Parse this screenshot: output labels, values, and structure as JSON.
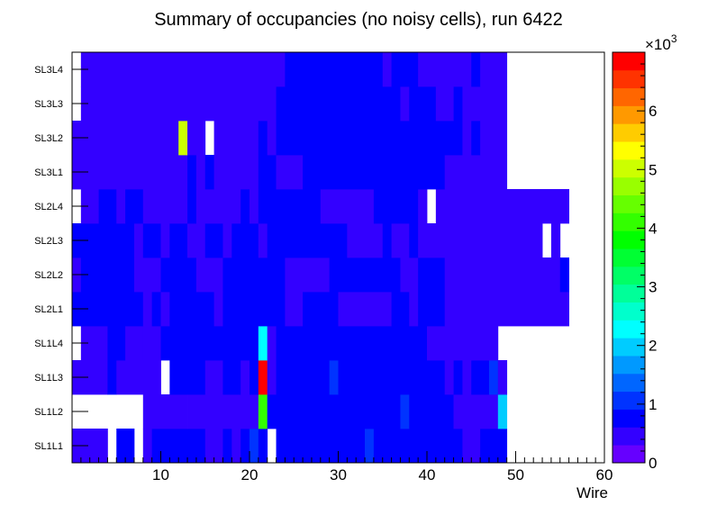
{
  "chart_data": {
    "type": "heatmap",
    "title": "Summary of occupancies (no noisy cells), run 6422",
    "xlabel": "Wire",
    "ylabel": "",
    "xlim": [
      0,
      60
    ],
    "x_ticks": [
      "10",
      "20",
      "30",
      "40",
      "50",
      "60"
    ],
    "layers": [
      "SL1L1",
      "SL1L2",
      "SL1L3",
      "SL1L4",
      "SL2L1",
      "SL2L2",
      "SL2L3",
      "SL2L4",
      "SL3L1",
      "SL3L2",
      "SL3L3",
      "SL3L4"
    ],
    "color_axis": {
      "range": [
        0,
        7
      ],
      "ticks": [
        "0",
        "1",
        "2",
        "3",
        "4",
        "5",
        "6"
      ],
      "multiplier_base": "×10",
      "multiplier_exp": "3",
      "palette": [
        "#6600ff",
        "#3300ff",
        "#0000ff",
        "#0033ff",
        "#0066ff",
        "#0099ff",
        "#00ccff",
        "#00ffff",
        "#00ffcc",
        "#00ff99",
        "#00ff66",
        "#00ff33",
        "#00ff00",
        "#33ff00",
        "#66ff00",
        "#99ff00",
        "#ccff00",
        "#ffff00",
        "#ffcc00",
        "#ff9900",
        "#ff6600",
        "#ff3300",
        "#ff0000"
      ]
    },
    "rows": [
      {
        "layer": "SL1L1",
        "segments": [
          [
            1,
            4,
            0.4
          ],
          [
            5,
            5,
            null
          ],
          [
            6,
            7,
            0.9
          ],
          [
            8,
            8,
            null
          ],
          [
            9,
            9,
            0.4
          ],
          [
            10,
            11,
            0.7
          ],
          [
            12,
            15,
            0.8
          ],
          [
            16,
            17,
            0.5
          ],
          [
            18,
            18,
            0.9
          ],
          [
            19,
            19,
            0.5
          ],
          [
            20,
            20,
            0.8
          ],
          [
            21,
            21,
            1.0
          ],
          [
            22,
            22,
            0.7
          ],
          [
            23,
            23,
            null
          ],
          [
            24,
            33,
            0.75
          ],
          [
            34,
            34,
            1.1
          ],
          [
            35,
            44,
            0.75
          ],
          [
            45,
            46,
            0.4
          ],
          [
            47,
            49,
            0.7
          ],
          [
            50,
            60,
            null
          ]
        ]
      },
      {
        "layer": "SL1L2",
        "segments": [
          [
            1,
            8,
            null
          ],
          [
            9,
            13,
            0.4
          ],
          [
            14,
            20,
            0.6
          ],
          [
            21,
            21,
            0.4
          ],
          [
            22,
            22,
            4.0
          ],
          [
            23,
            37,
            0.75
          ],
          [
            38,
            38,
            1.1
          ],
          [
            39,
            43,
            0.75
          ],
          [
            44,
            48,
            0.5
          ],
          [
            49,
            49,
            1.9
          ],
          [
            50,
            60,
            null
          ]
        ]
      },
      {
        "layer": "SL1L3",
        "segments": [
          [
            1,
            4,
            0.4
          ],
          [
            5,
            5,
            0.8
          ],
          [
            6,
            10,
            0.4
          ],
          [
            11,
            11,
            null
          ],
          [
            12,
            15,
            0.7
          ],
          [
            16,
            17,
            0.4
          ],
          [
            18,
            19,
            0.7
          ],
          [
            20,
            20,
            0.5
          ],
          [
            21,
            21,
            0.8
          ],
          [
            22,
            22,
            6.9
          ],
          [
            23,
            23,
            0.5
          ],
          [
            24,
            29,
            0.75
          ],
          [
            30,
            30,
            1.1
          ],
          [
            31,
            42,
            0.75
          ],
          [
            43,
            43,
            0.45
          ],
          [
            44,
            44,
            0.75
          ],
          [
            45,
            45,
            0.45
          ],
          [
            46,
            47,
            0.7
          ],
          [
            48,
            48,
            1.0
          ],
          [
            49,
            49,
            0.4
          ],
          [
            50,
            60,
            null
          ]
        ]
      },
      {
        "layer": "SL1L4",
        "segments": [
          [
            1,
            1,
            null
          ],
          [
            2,
            4,
            0.4
          ],
          [
            5,
            6,
            0.7
          ],
          [
            7,
            8,
            0.5
          ],
          [
            9,
            10,
            0.4
          ],
          [
            11,
            21,
            0.8
          ],
          [
            22,
            22,
            2.3
          ],
          [
            23,
            23,
            0.5
          ],
          [
            24,
            40,
            0.75
          ],
          [
            41,
            48,
            0.4
          ],
          [
            49,
            60,
            null
          ]
        ]
      },
      {
        "layer": "SL2L1",
        "segments": [
          [
            1,
            8,
            0.8
          ],
          [
            9,
            9,
            0.5
          ],
          [
            10,
            10,
            0.7
          ],
          [
            11,
            11,
            0.5
          ],
          [
            12,
            12,
            0.9
          ],
          [
            13,
            16,
            0.8
          ],
          [
            17,
            17,
            0.5
          ],
          [
            18,
            24,
            0.8
          ],
          [
            25,
            26,
            0.5
          ],
          [
            27,
            30,
            0.75
          ],
          [
            31,
            36,
            0.45
          ],
          [
            37,
            38,
            0.75
          ],
          [
            39,
            39,
            0.5
          ],
          [
            40,
            42,
            0.8
          ],
          [
            43,
            56,
            0.4
          ],
          [
            57,
            60,
            null
          ]
        ]
      },
      {
        "layer": "SL2L2",
        "segments": [
          [
            1,
            1,
            0.4
          ],
          [
            2,
            7,
            0.8
          ],
          [
            8,
            10,
            0.45
          ],
          [
            11,
            14,
            0.7
          ],
          [
            15,
            17,
            0.45
          ],
          [
            18,
            24,
            0.8
          ],
          [
            25,
            29,
            0.45
          ],
          [
            30,
            37,
            0.8
          ],
          [
            38,
            39,
            0.45
          ],
          [
            40,
            42,
            0.75
          ],
          [
            43,
            55,
            0.4
          ],
          [
            56,
            56,
            0.85
          ],
          [
            57,
            60,
            null
          ]
        ]
      },
      {
        "layer": "SL2L3",
        "segments": [
          [
            1,
            7,
            0.8
          ],
          [
            8,
            8,
            0.45
          ],
          [
            9,
            10,
            0.7
          ],
          [
            11,
            11,
            0.45
          ],
          [
            12,
            13,
            0.8
          ],
          [
            14,
            15,
            0.45
          ],
          [
            16,
            17,
            0.8
          ],
          [
            18,
            18,
            0.45
          ],
          [
            19,
            21,
            0.75
          ],
          [
            22,
            22,
            0.45
          ],
          [
            23,
            24,
            0.8
          ],
          [
            25,
            28,
            0.7
          ],
          [
            29,
            31,
            0.8
          ],
          [
            32,
            35,
            0.45
          ],
          [
            36,
            36,
            0.75
          ],
          [
            37,
            38,
            0.45
          ],
          [
            39,
            39,
            0.8
          ],
          [
            40,
            53,
            0.4
          ],
          [
            54,
            54,
            null
          ],
          [
            55,
            55,
            0.4
          ],
          [
            56,
            60,
            null
          ]
        ]
      },
      {
        "layer": "SL2L4",
        "segments": [
          [
            1,
            1,
            null
          ],
          [
            2,
            3,
            0.45
          ],
          [
            4,
            5,
            0.75
          ],
          [
            6,
            6,
            0.45
          ],
          [
            7,
            8,
            0.75
          ],
          [
            9,
            13,
            0.45
          ],
          [
            14,
            14,
            0.75
          ],
          [
            15,
            19,
            0.45
          ],
          [
            20,
            20,
            0.7
          ],
          [
            21,
            21,
            0.45
          ],
          [
            22,
            24,
            0.8
          ],
          [
            25,
            28,
            0.7
          ],
          [
            29,
            34,
            0.45
          ],
          [
            35,
            39,
            0.75
          ],
          [
            40,
            40,
            0.45
          ],
          [
            41,
            41,
            null
          ],
          [
            42,
            56,
            0.4
          ],
          [
            57,
            60,
            null
          ]
        ]
      },
      {
        "layer": "SL3L1",
        "segments": [
          [
            1,
            13,
            0.4
          ],
          [
            14,
            14,
            0.75
          ],
          [
            15,
            15,
            0.4
          ],
          [
            16,
            16,
            0.75
          ],
          [
            17,
            21,
            0.4
          ],
          [
            22,
            23,
            0.75
          ],
          [
            24,
            26,
            0.4
          ],
          [
            27,
            42,
            0.8
          ],
          [
            43,
            49,
            0.4
          ],
          [
            50,
            60,
            null
          ]
        ]
      },
      {
        "layer": "SL3L2",
        "segments": [
          [
            1,
            12,
            0.4
          ],
          [
            13,
            13,
            5.0
          ],
          [
            14,
            15,
            0.4
          ],
          [
            16,
            16,
            null
          ],
          [
            17,
            21,
            0.4
          ],
          [
            22,
            22,
            0.75
          ],
          [
            23,
            23,
            0.4
          ],
          [
            24,
            44,
            0.8
          ],
          [
            45,
            45,
            0.4
          ],
          [
            46,
            46,
            0.8
          ],
          [
            47,
            49,
            0.4
          ],
          [
            50,
            60,
            null
          ]
        ]
      },
      {
        "layer": "SL3L3",
        "segments": [
          [
            1,
            1,
            null
          ],
          [
            2,
            23,
            0.4
          ],
          [
            24,
            37,
            0.8
          ],
          [
            38,
            38,
            0.4
          ],
          [
            39,
            41,
            0.8
          ],
          [
            42,
            43,
            0.4
          ],
          [
            44,
            44,
            0.8
          ],
          [
            45,
            49,
            0.4
          ],
          [
            50,
            60,
            null
          ]
        ]
      },
      {
        "layer": "SL3L4",
        "segments": [
          [
            1,
            1,
            null
          ],
          [
            2,
            24,
            0.4
          ],
          [
            25,
            35,
            0.8
          ],
          [
            36,
            36,
            0.45
          ],
          [
            37,
            39,
            0.8
          ],
          [
            40,
            45,
            0.45
          ],
          [
            46,
            46,
            0.8
          ],
          [
            47,
            49,
            0.4
          ],
          [
            50,
            60,
            null
          ]
        ]
      }
    ]
  }
}
